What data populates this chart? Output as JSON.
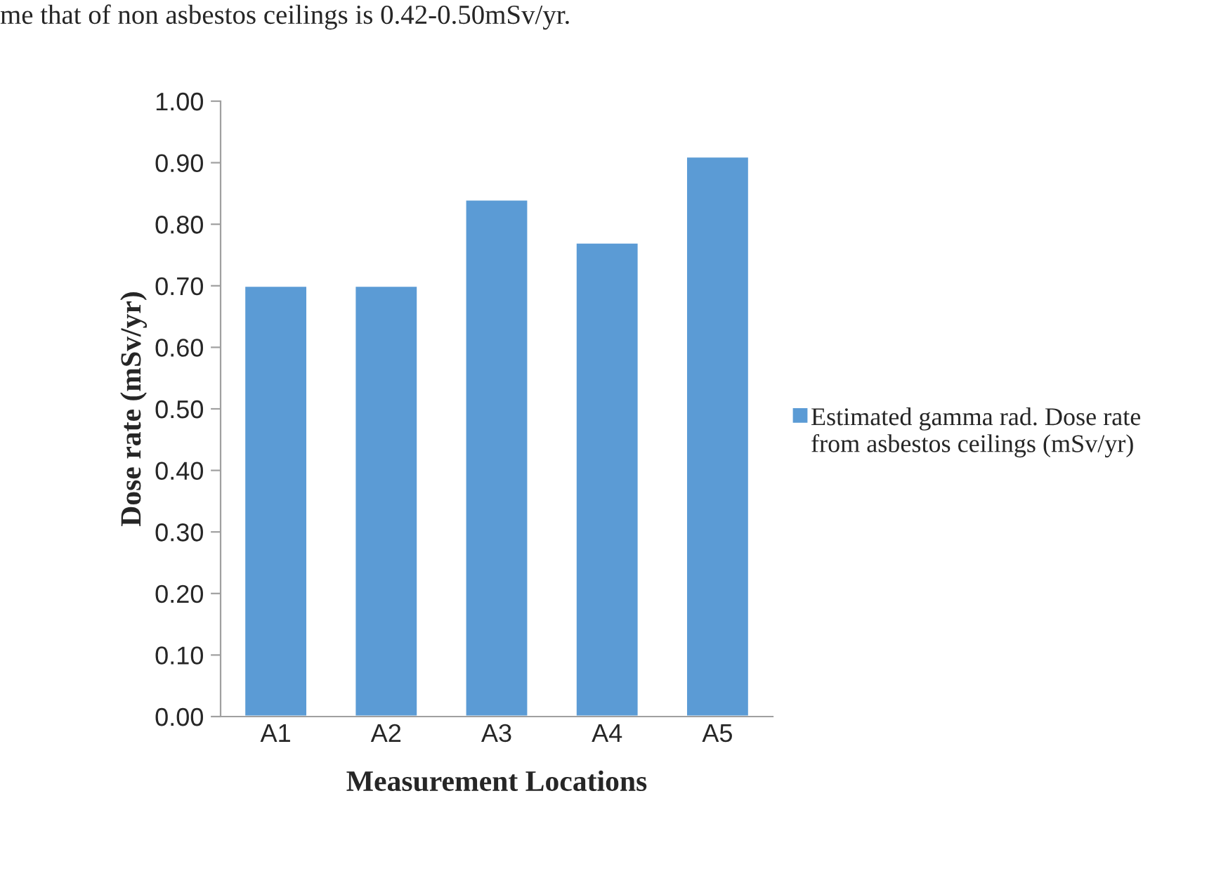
{
  "chart_data": {
    "type": "bar",
    "xlabel": "Measurement Locations",
    "ylabel": "Dose rate (mSv/yr)",
    "categories": [
      "A1",
      "A2",
      "A3",
      "A4",
      "A5"
    ],
    "series": [
      {
        "name": "Estimated gamma rad. Dose rate from asbestos ceilings (mSv/yr)",
        "color": "#5b9bd5",
        "values": [
          0.7,
          0.7,
          0.84,
          0.77,
          0.91
        ]
      }
    ],
    "ylim": [
      0,
      1.0
    ],
    "yticks": [
      {
        "value": 0,
        "label": "0.00"
      },
      {
        "value": 0.1,
        "label": "0.10"
      },
      {
        "value": 0.2,
        "label": "0.20"
      },
      {
        "value": 0.3,
        "label": "0.30"
      },
      {
        "value": 0.4,
        "label": "0.40"
      },
      {
        "value": 0.5,
        "label": "0.50"
      },
      {
        "value": 0.6,
        "label": "0.60"
      },
      {
        "value": 0.7,
        "label": "0.70"
      },
      {
        "value": 0.8,
        "label": "0.80"
      },
      {
        "value": 0.9,
        "label": "0.90"
      },
      {
        "value": 1.0,
        "label": "1.00"
      }
    ],
    "grid": false,
    "legend": "right",
    "annotations": [
      "me that of non asbestos ceilings is 0.42-0.50mSv/yr."
    ]
  }
}
